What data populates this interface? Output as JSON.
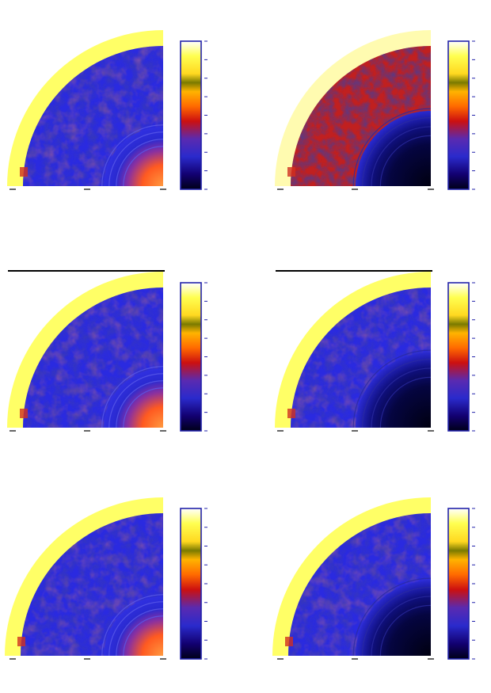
{
  "figure": {
    "colors": {
      "colorbar": [
        "#000022",
        "#1a0088",
        "#3333cc",
        "#6a2a9a",
        "#c01010",
        "#ff5a00",
        "#ffa600",
        "#ffd81a",
        "#7a7a00",
        "#ffff40",
        "#ffffff"
      ],
      "frame": "#2222aa",
      "axis": "#000000",
      "shell": "#ffff66",
      "shell_pale": "#fffbb0",
      "interior": "#2a2ae0",
      "interior_red": "#c02020",
      "core": "#ff8030"
    },
    "panels": [
      {
        "id": "top-left",
        "core": "warm",
        "shell": "yellow",
        "interior": "blue",
        "bar": false
      },
      {
        "id": "mid-left",
        "core": "warm",
        "shell": "yellow",
        "interior": "blue",
        "bar": true
      },
      {
        "id": "bottom-left",
        "core": "warm",
        "shell": "yellow",
        "interior": "blue",
        "bar": false
      },
      {
        "id": "top-right",
        "core": "dark",
        "shell": "pale",
        "interior": "red",
        "bar": false
      },
      {
        "id": "mid-right",
        "core": "dark",
        "shell": "yellow",
        "interior": "blue",
        "bar": true
      },
      {
        "id": "bottom-right",
        "core": "dark",
        "shell": "yellow",
        "interior": "blue",
        "bar": false
      }
    ]
  }
}
